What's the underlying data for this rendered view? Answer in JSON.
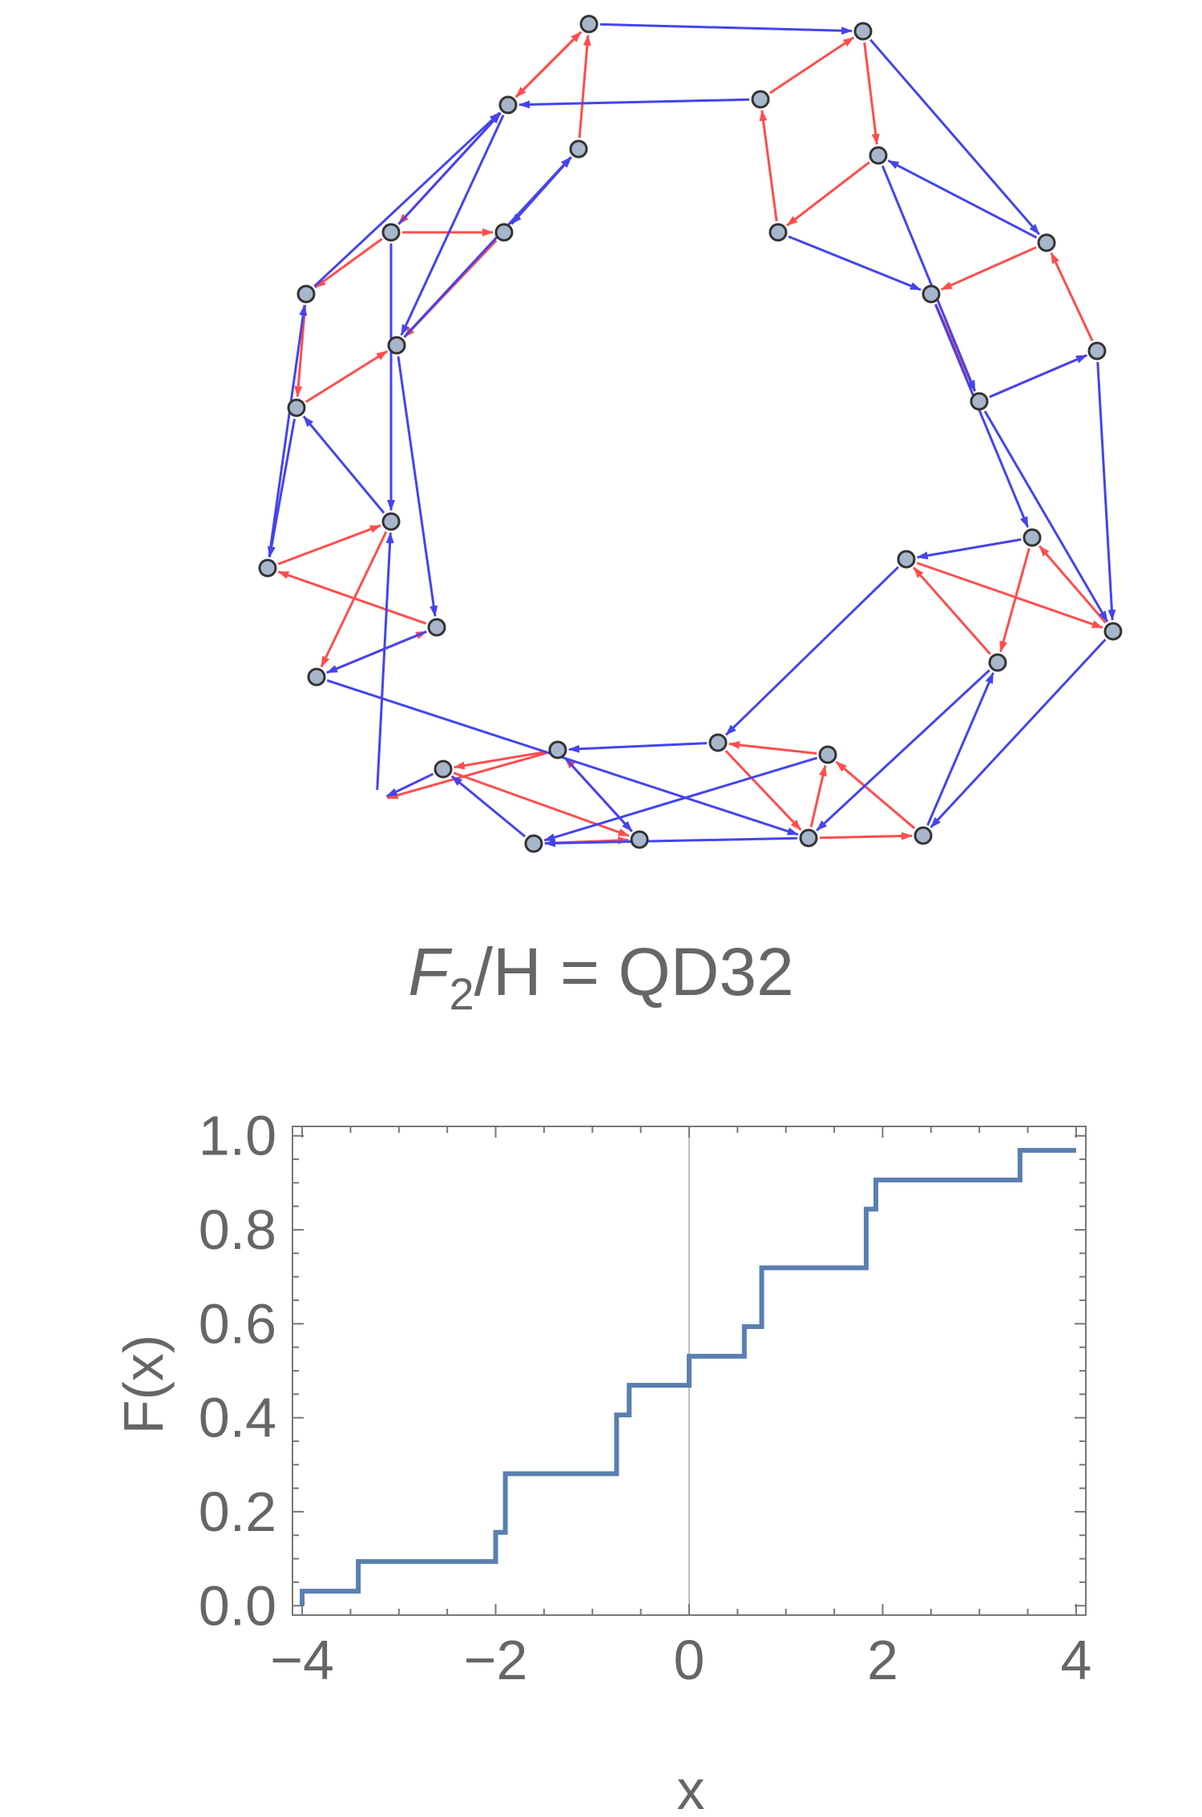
{
  "colors": {
    "red_edge": "#ff4d4d",
    "blue_edge": "#4444ee",
    "node_fill": "#a7b6cb",
    "node_stroke": "#333333",
    "text": "#666666",
    "step_line": "#5a7fb0",
    "frame": "#777777",
    "zero_line": "#aaaaaa"
  },
  "graph": {
    "caption": {
      "italic_F": "F",
      "subscript": "2",
      "rest": "/H = QD32"
    },
    "node_count": 32,
    "edge_types": [
      "red",
      "blue"
    ]
  },
  "chart_data": {
    "type": "line",
    "step": true,
    "xlabel": "x",
    "ylabel": "F(x)",
    "xlim": [
      -4.1,
      4.1
    ],
    "ylim": [
      -0.02,
      1.02
    ],
    "x_ticks": [
      -4,
      -2,
      0,
      2,
      4
    ],
    "x_tick_labels": [
      "−4",
      "−2",
      "0",
      "2",
      "4"
    ],
    "y_ticks": [
      0.0,
      0.2,
      0.4,
      0.6,
      0.8,
      1.0
    ],
    "y_tick_labels": [
      "0.0",
      "0.2",
      "0.4",
      "0.6",
      "0.8",
      "1.0"
    ],
    "grid": false,
    "vertical_reference_line_x": 0,
    "series": [
      {
        "x": [
          -4.0,
          -3.42,
          -2.0,
          -1.9,
          -0.75,
          -0.62,
          0.0,
          0.57,
          0.75,
          1.83,
          1.93,
          3.42,
          4.0
        ],
        "y": [
          0.031,
          0.094,
          0.156,
          0.281,
          0.406,
          0.469,
          0.531,
          0.594,
          0.719,
          0.844,
          0.906,
          0.969,
          0.969
        ]
      }
    ]
  }
}
